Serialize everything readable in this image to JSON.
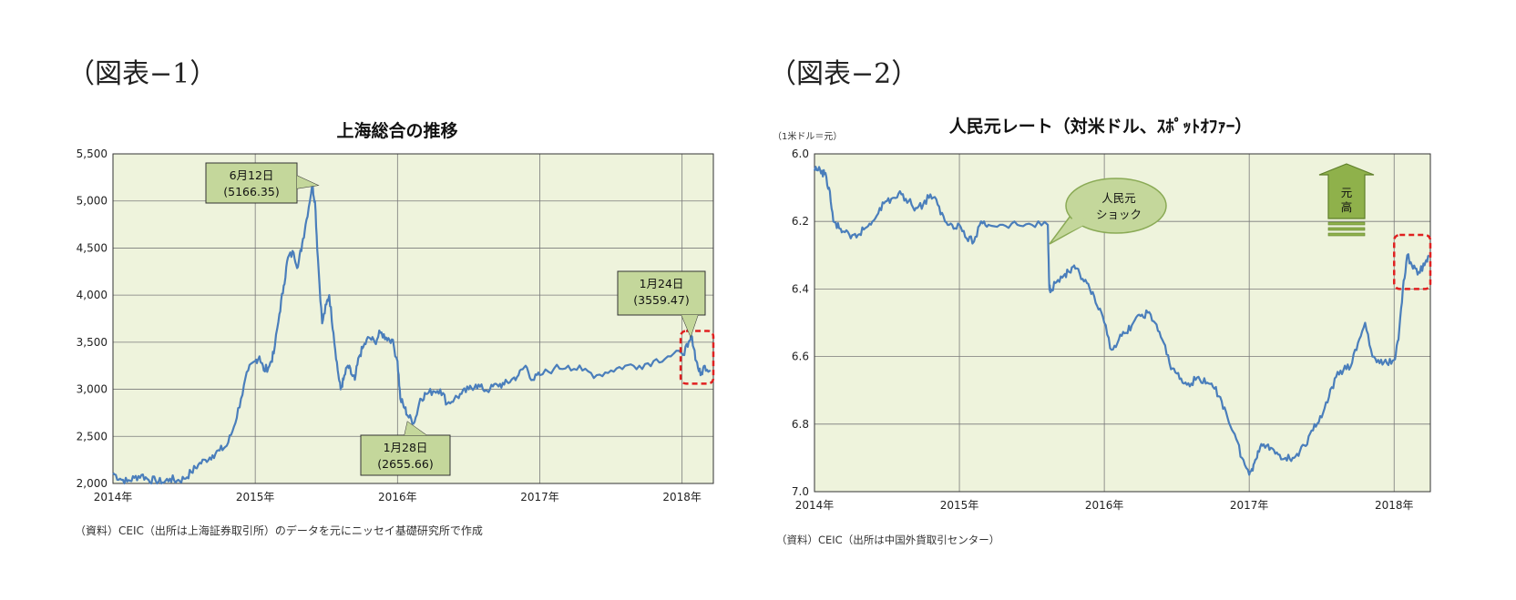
{
  "figure_labels": [
    "（図表−1）",
    "（図表−2）"
  ],
  "chart_data": [
    {
      "type": "line",
      "title": "上海総合の推移",
      "ylabel": "",
      "ylim": [
        2000,
        5500
      ],
      "xlim": [
        2014.0,
        2018.22
      ],
      "y_ticks": [
        "2,000",
        "2,500",
        "3,000",
        "3,500",
        "4,000",
        "4,500",
        "5,000",
        "5,500"
      ],
      "y_tick_values": [
        2000,
        2500,
        3000,
        3500,
        4000,
        4500,
        5000,
        5500
      ],
      "x_ticks": [
        "2014年",
        "2015年",
        "2016年",
        "2017年",
        "2018年"
      ],
      "x_tick_values": [
        2014,
        2015,
        2016,
        2017,
        2018
      ],
      "grid": true,
      "line_color": "#4a7ebb",
      "plot_bg": "#eef3dc",
      "x": [
        2014.0,
        2014.05,
        2014.1,
        2014.15,
        2014.2,
        2014.25,
        2014.3,
        2014.35,
        2014.4,
        2014.45,
        2014.5,
        2014.55,
        2014.6,
        2014.65,
        2014.7,
        2014.75,
        2014.8,
        2014.85,
        2014.9,
        2014.95,
        2015.0,
        2015.03,
        2015.06,
        2015.1,
        2015.13,
        2015.17,
        2015.2,
        2015.23,
        2015.27,
        2015.3,
        2015.33,
        2015.36,
        2015.4,
        2015.42,
        2015.44,
        2015.47,
        2015.5,
        2015.52,
        2015.55,
        2015.58,
        2015.6,
        2015.62,
        2015.65,
        2015.68,
        2015.7,
        2015.73,
        2015.76,
        2015.8,
        2015.84,
        2015.88,
        2015.92,
        2015.96,
        2016.0,
        2016.02,
        2016.05,
        2016.08,
        2016.12,
        2016.16,
        2016.2,
        2016.25,
        2016.3,
        2016.35,
        2016.4,
        2016.45,
        2016.5,
        2016.55,
        2016.6,
        2016.65,
        2016.7,
        2016.75,
        2016.8,
        2016.85,
        2016.9,
        2016.95,
        2017.0,
        2017.1,
        2017.2,
        2017.3,
        2017.4,
        2017.5,
        2017.6,
        2017.7,
        2017.8,
        2017.9,
        2018.0,
        2018.04,
        2018.07,
        2018.1,
        2018.13,
        2018.16,
        2018.2
      ],
      "y": [
        2110,
        2050,
        2020,
        2060,
        2090,
        2040,
        2030,
        2010,
        2050,
        2030,
        2050,
        2120,
        2200,
        2250,
        2300,
        2350,
        2400,
        2600,
        2900,
        3200,
        3300,
        3350,
        3200,
        3250,
        3380,
        3800,
        4100,
        4400,
        4450,
        4300,
        4550,
        4800,
        5166,
        5000,
        4400,
        3700,
        3900,
        4000,
        3600,
        3200,
        3000,
        3100,
        3250,
        3150,
        3100,
        3350,
        3450,
        3550,
        3500,
        3600,
        3550,
        3530,
        3300,
        2900,
        2800,
        2700,
        2655,
        2900,
        2950,
        2980,
        3000,
        2850,
        2900,
        2950,
        3000,
        3050,
        3000,
        3000,
        3050,
        3050,
        3100,
        3150,
        3250,
        3100,
        3150,
        3220,
        3250,
        3200,
        3150,
        3200,
        3250,
        3250,
        3300,
        3350,
        3380,
        3450,
        3559,
        3300,
        3150,
        3250,
        3200
      ],
      "annotations": [
        {
          "label": "6月12日",
          "value": "(5166.35)",
          "x": 2015.44,
          "y": 5166.35
        },
        {
          "label": "1月28日",
          "value": "(2655.66)",
          "x": 2016.07,
          "y": 2655.66
        },
        {
          "label": "1月24日",
          "value": "(3559.47)",
          "x": 2018.06,
          "y": 3559.47
        }
      ],
      "highlight_box": {
        "x_range": [
          2017.99,
          2018.22
        ],
        "y_range": [
          3060,
          3620
        ],
        "color": "#e02020"
      }
    },
    {
      "type": "line",
      "title": "人民元レート（対米ドル、ｽﾎﾟｯﾄｵﾌｧｰ）",
      "unit_label": "（1米ドル＝元）",
      "ylim": [
        6.0,
        7.0
      ],
      "y_inverted": true,
      "xlim": [
        2014.0,
        2018.25
      ],
      "y_ticks": [
        "6.0",
        "6.2",
        "6.4",
        "6.6",
        "6.8",
        "7.0"
      ],
      "y_tick_values": [
        6.0,
        6.2,
        6.4,
        6.6,
        6.8,
        7.0
      ],
      "x_ticks": [
        "2014年",
        "2015年",
        "2016年",
        "2017年",
        "2018年"
      ],
      "x_tick_values": [
        2014,
        2015,
        2016,
        2017,
        2018
      ],
      "grid": true,
      "line_color": "#4a7ebb",
      "plot_bg": "#eef3dc",
      "x": [
        2014.0,
        2014.04,
        2014.07,
        2014.1,
        2014.13,
        2014.17,
        2014.2,
        2014.25,
        2014.3,
        2014.35,
        2014.4,
        2014.45,
        2014.5,
        2014.55,
        2014.6,
        2014.65,
        2014.7,
        2014.75,
        2014.8,
        2014.85,
        2014.9,
        2014.95,
        2015.0,
        2015.05,
        2015.1,
        2015.15,
        2015.2,
        2015.3,
        2015.4,
        2015.5,
        2015.61,
        2015.62,
        2015.63,
        2015.67,
        2015.72,
        2015.76,
        2015.8,
        2015.85,
        2015.9,
        2015.95,
        2016.0,
        2016.05,
        2016.1,
        2016.15,
        2016.2,
        2016.25,
        2016.3,
        2016.35,
        2016.4,
        2016.45,
        2016.5,
        2016.55,
        2016.6,
        2016.65,
        2016.7,
        2016.75,
        2016.8,
        2016.85,
        2016.9,
        2016.95,
        2017.0,
        2017.03,
        2017.06,
        2017.1,
        2017.15,
        2017.2,
        2017.25,
        2017.3,
        2017.35,
        2017.4,
        2017.45,
        2017.5,
        2017.55,
        2017.6,
        2017.65,
        2017.7,
        2017.75,
        2017.8,
        2017.85,
        2017.9,
        2017.95,
        2018.0,
        2018.03,
        2018.06,
        2018.09,
        2018.13,
        2018.17,
        2018.21,
        2018.24
      ],
      "y": [
        6.05,
        6.05,
        6.06,
        6.1,
        6.2,
        6.22,
        6.23,
        6.25,
        6.24,
        6.22,
        6.2,
        6.16,
        6.14,
        6.13,
        6.12,
        6.14,
        6.16,
        6.15,
        6.12,
        6.15,
        6.2,
        6.21,
        6.21,
        6.25,
        6.26,
        6.2,
        6.21,
        6.21,
        6.21,
        6.21,
        6.21,
        6.39,
        6.4,
        6.38,
        6.36,
        6.35,
        6.34,
        6.37,
        6.4,
        6.45,
        6.5,
        6.58,
        6.55,
        6.53,
        6.5,
        6.48,
        6.47,
        6.5,
        6.55,
        6.62,
        6.65,
        6.68,
        6.68,
        6.66,
        6.68,
        6.69,
        6.72,
        6.78,
        6.83,
        6.9,
        6.95,
        6.92,
        6.88,
        6.86,
        6.87,
        6.89,
        6.9,
        6.9,
        6.88,
        6.86,
        6.8,
        6.78,
        6.72,
        6.66,
        6.64,
        6.63,
        6.56,
        6.5,
        6.6,
        6.62,
        6.62,
        6.61,
        6.55,
        6.4,
        6.3,
        6.34,
        6.35,
        6.33,
        6.3
      ],
      "callout": "人民元\nショック",
      "callout_lines": [
        "人民元",
        "ショック"
      ],
      "arrow_label_lines": [
        "元",
        "高"
      ],
      "highlight_box": {
        "x_range": [
          2018.0,
          2018.25
        ],
        "y_range": [
          6.24,
          6.4
        ],
        "color": "#e02020"
      }
    }
  ],
  "sources": [
    "（資料）CEIC（出所は上海証券取引所）のデータを元にニッセイ基礎研究所で作成",
    "（資料）CEIC（出所は中国外貨取引センター）"
  ]
}
